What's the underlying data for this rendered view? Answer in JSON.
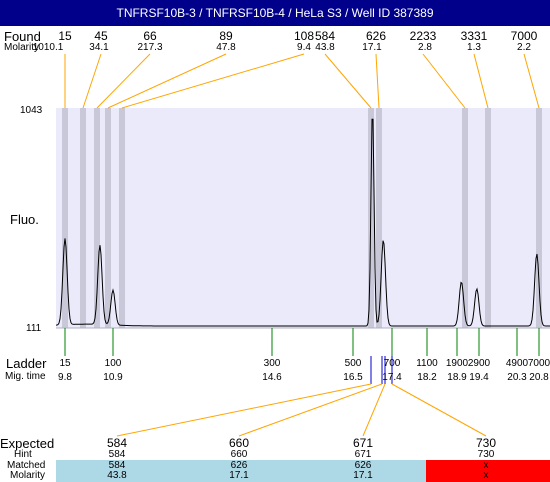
{
  "header": {
    "title": "TNFRSF10B-3 / TNFRSF10B-4 / HeLa S3 / Well ID 387389"
  },
  "labels": {
    "found": "Found",
    "molarity": "Molarity",
    "fluo": "Fluo.",
    "ladder": "Ladder",
    "mig_time": "Mig. time",
    "expected": "Expected",
    "hint": "Hint",
    "matched": "Matched",
    "molarity_bottom": "Molarity"
  },
  "colors": {
    "title_bg": "#00008b",
    "plot_bg": "#eaeafa",
    "band": "#c8c8d8",
    "connector": "#ffa500",
    "ladder_tick": "#008000",
    "expected_tick": "#0000cd",
    "matched_ok": "#add8e6",
    "matched_missing": "#ff0000"
  },
  "chart_data": {
    "type": "line",
    "ylabel": "Fluo.",
    "ylim": [
      111,
      1043
    ],
    "yticks": [
      "1043",
      "111"
    ],
    "found": [
      {
        "size": "15",
        "molarity": "1010.1"
      },
      {
        "size": "45",
        "molarity": "34.1"
      },
      {
        "size": "66",
        "molarity": "217.3"
      },
      {
        "size": "89",
        "molarity": "47.8"
      },
      {
        "size": "108",
        "molarity": "9.4"
      },
      {
        "size": "584",
        "molarity": "43.8"
      },
      {
        "size": "626",
        "molarity": "17.1"
      },
      {
        "size": "2233",
        "molarity": "2.8"
      },
      {
        "size": "3331",
        "molarity": "1.3"
      },
      {
        "size": "7000",
        "molarity": "2.2"
      }
    ],
    "ladder": [
      {
        "size": "15",
        "time": "9.8"
      },
      {
        "size": "100",
        "time": "10.9"
      },
      {
        "size": "300",
        "time": "14.6"
      },
      {
        "size": "500",
        "time": "16.5"
      },
      {
        "size": "700",
        "time": "17.4"
      },
      {
        "size": "1100",
        "time": "18.2"
      },
      {
        "size": "1900",
        "time": "18.9"
      },
      {
        "size": "2900",
        "time": "19.4"
      },
      {
        "size": "4900",
        "time": "20.3"
      },
      {
        "size": "7000",
        "time": "20.8"
      }
    ],
    "expected": [
      {
        "expected": "584",
        "hint": "584",
        "matched": "584",
        "molarity": "43.8",
        "status": "ok"
      },
      {
        "expected": "660",
        "hint": "660",
        "matched": "626",
        "molarity": "17.1",
        "status": "ok"
      },
      {
        "expected": "671",
        "hint": "671",
        "matched": "626",
        "molarity": "17.1",
        "status": "ok"
      },
      {
        "expected": "730",
        "hint": "730",
        "matched": "x",
        "molarity": "x",
        "status": "missing"
      }
    ],
    "trace": {
      "baseline": 111,
      "peaks": [
        {
          "time": 9.8,
          "height": 480
        },
        {
          "time": 10.6,
          "height": 450
        },
        {
          "time": 10.9,
          "height": 260
        },
        {
          "time": 16.95,
          "height": 1043
        },
        {
          "time": 17.2,
          "height": 480
        },
        {
          "time": 19.0,
          "height": 300
        },
        {
          "time": 19.35,
          "height": 270
        },
        {
          "time": 20.75,
          "height": 420
        }
      ]
    }
  }
}
